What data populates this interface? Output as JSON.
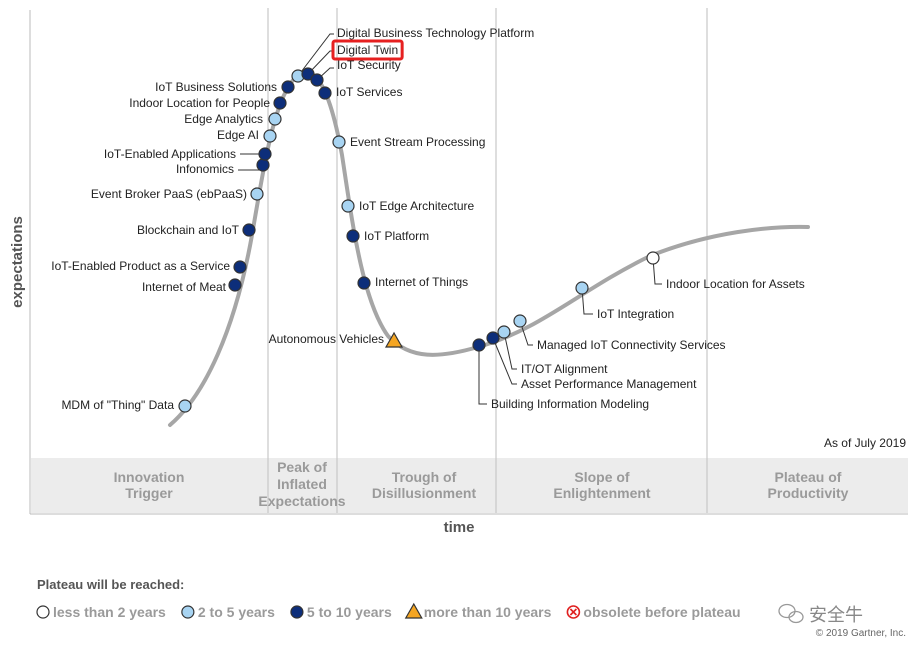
{
  "chart_data": {
    "type": "scatter",
    "xlabel": "time",
    "ylabel": "expectations",
    "as_of": "As of July 2019",
    "phases": [
      {
        "name": "Innovation Trigger",
        "lines": [
          "Innovation",
          "Trigger"
        ]
      },
      {
        "name": "Peak of Inflated Expectations",
        "lines": [
          "Peak of",
          "Inflated",
          "Expectations"
        ]
      },
      {
        "name": "Trough of Disillusionment",
        "lines": [
          "Trough of",
          "Disillusionment"
        ]
      },
      {
        "name": "Slope of Enlightenment",
        "lines": [
          "Slope of",
          "Enlightenment"
        ]
      },
      {
        "name": "Plateau of Productivity",
        "lines": [
          "Plateau of",
          "Productivity"
        ]
      }
    ],
    "categories": [
      "lt2",
      "2to5",
      "5to10",
      "gt10",
      "obsolete"
    ],
    "points": [
      {
        "name": "MDM of \"Thing\" Data",
        "cat": "2to5"
      },
      {
        "name": "Internet of Meat",
        "cat": "5to10"
      },
      {
        "name": "IoT-Enabled Product as a Service",
        "cat": "5to10"
      },
      {
        "name": "Blockchain and IoT",
        "cat": "5to10"
      },
      {
        "name": "Event Broker PaaS (ebPaaS)",
        "cat": "2to5"
      },
      {
        "name": "Infonomics",
        "cat": "5to10"
      },
      {
        "name": "IoT-Enabled Applications",
        "cat": "5to10"
      },
      {
        "name": "Edge AI",
        "cat": "2to5"
      },
      {
        "name": "Edge Analytics",
        "cat": "2to5"
      },
      {
        "name": "Indoor Location for People",
        "cat": "5to10"
      },
      {
        "name": "IoT Business Solutions",
        "cat": "5to10"
      },
      {
        "name": "Digital Business Technology Platform",
        "cat": "2to5"
      },
      {
        "name": "Digital Twin",
        "cat": "5to10",
        "highlight": true
      },
      {
        "name": "IoT Security",
        "cat": "5to10"
      },
      {
        "name": "IoT Services",
        "cat": "5to10"
      },
      {
        "name": "Event Stream Processing",
        "cat": "2to5"
      },
      {
        "name": "IoT Edge Architecture",
        "cat": "2to5"
      },
      {
        "name": "IoT Platform",
        "cat": "5to10"
      },
      {
        "name": "Internet of Things",
        "cat": "5to10"
      },
      {
        "name": "Autonomous Vehicles",
        "cat": "gt10"
      },
      {
        "name": "Building Information Modeling",
        "cat": "5to10"
      },
      {
        "name": "Asset Performance Management",
        "cat": "5to10"
      },
      {
        "name": "IT/OT Alignment",
        "cat": "2to5"
      },
      {
        "name": "Managed IoT Connectivity Services",
        "cat": "2to5"
      },
      {
        "name": "IoT Integration",
        "cat": "2to5"
      },
      {
        "name": "Indoor Location for Assets",
        "cat": "lt2"
      }
    ]
  },
  "legend": {
    "title": "Plateau will be reached:",
    "items": [
      {
        "cat": "lt2",
        "label": "less than 2 years"
      },
      {
        "cat": "2to5",
        "label": "2 to 5 years"
      },
      {
        "cat": "5to10",
        "label": "5 to 10 years"
      },
      {
        "cat": "gt10",
        "label": "more than 10 years"
      },
      {
        "cat": "obsolete",
        "label": "obsolete before plateau"
      }
    ]
  },
  "colors": {
    "lt2": "#ffffff",
    "2to5": "#a8d4f2",
    "5to10": "#0d2e7a",
    "gt10": "#f5a623",
    "obsolete": "#e02020",
    "highlight": "#e62020",
    "curve": "#a6a6a6",
    "band": "#ececec"
  },
  "footer": {
    "copyright": "© 2019 Gartner, Inc.",
    "watermark": "安全牛"
  }
}
